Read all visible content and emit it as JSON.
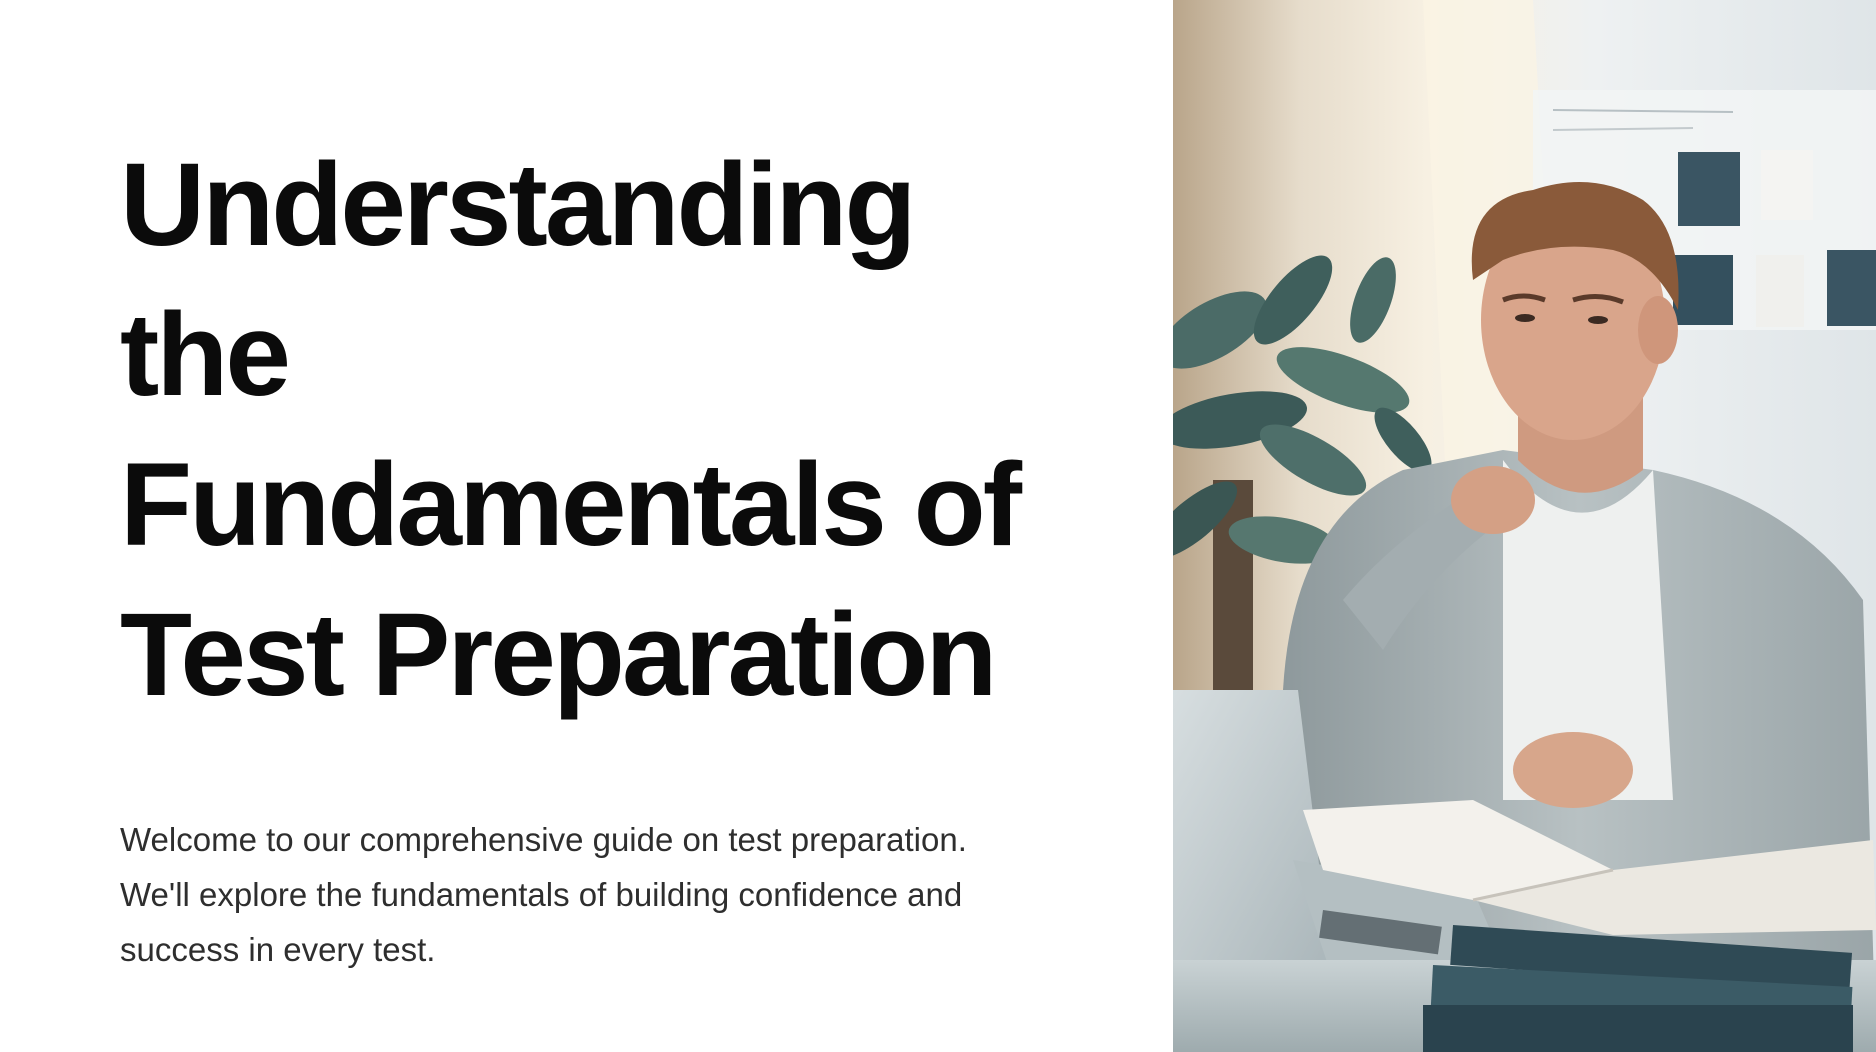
{
  "slide": {
    "title_lines": [
      "Understanding",
      "the",
      "Fundamentals of",
      "Test Preparation"
    ],
    "subtitle_lines": [
      "Welcome to our comprehensive guide on test preparation.",
      "We'll explore the fundamentals of building confidence and",
      "success in every test."
    ]
  },
  "photo": {
    "subject": "student-studying-at-laptop",
    "colors": {
      "wall_light": "#eef1f2",
      "wall_shadow": "#c9d2d6",
      "sunlight": "#f6ecd7",
      "plant": "#3f5f5c",
      "sweater": "#aab4b6",
      "tshirt": "#eef0ef",
      "skin": "#d9a58b",
      "hair": "#8a5a3a",
      "laptop": "#c6d0d3",
      "desk": "#b9c3c4",
      "book_dark": "#2f4a55",
      "paper": "#f3f1ec"
    }
  }
}
